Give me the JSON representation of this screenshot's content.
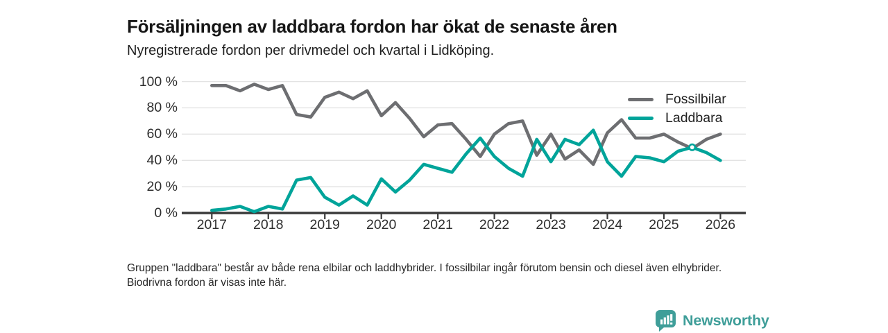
{
  "header": {
    "title": "Försäljningen av laddbara fordon har ökat de senaste åren",
    "subtitle": "Nyregistrerade fordon per drivmedel och kvartal i Lidköping."
  },
  "chart_data": {
    "type": "line",
    "x_unit": "quarter",
    "x_start": "2017 Q1",
    "x_end": "2026 Q1",
    "points_per_year": 4,
    "x_tick_labels": [
      "2017",
      "2018",
      "2019",
      "2020",
      "2021",
      "2022",
      "2023",
      "2024",
      "2025",
      "2026"
    ],
    "y_tick_labels": [
      "0 %",
      "20 %",
      "40 %",
      "60 %",
      "80 %",
      "100 %"
    ],
    "y_tick_values": [
      0,
      20,
      40,
      60,
      80,
      100
    ],
    "ylim": [
      0,
      100
    ],
    "grid": "horizontal",
    "legend_position": "top-right",
    "series": [
      {
        "name": "Fossilbilar",
        "color": "#6d6e71",
        "values": [
          97,
          97,
          93,
          98,
          94,
          97,
          75,
          73,
          88,
          92,
          87,
          93,
          74,
          84,
          72,
          58,
          67,
          68,
          56,
          43,
          60,
          68,
          70,
          44,
          60,
          41,
          48,
          37,
          61,
          71,
          57,
          57,
          60,
          54,
          49,
          56,
          60
        ]
      },
      {
        "name": "Laddbara",
        "color": "#00a49a",
        "values": [
          2,
          3,
          5,
          1,
          5,
          3,
          25,
          27,
          12,
          6,
          13,
          6,
          26,
          16,
          25,
          37,
          34,
          31,
          45,
          57,
          43,
          34,
          28,
          56,
          39,
          56,
          52,
          63,
          39,
          28,
          43,
          42,
          39,
          47,
          50,
          46,
          40
        ],
        "marker": {
          "index": 34,
          "quarter": "2025 Q3",
          "value": 50
        }
      }
    ]
  },
  "footnote": {
    "text": "Gruppen \"laddbara\" består av både rena elbilar och laddhybrider. I fossilbilar ingår förutom bensin och diesel även elhybrider. Biodrivna fordon är visas inte här."
  },
  "logo": {
    "text": "Newsworthy",
    "color": "#3f9e99",
    "icon": "bar-chart-speech-bubble-icon"
  },
  "style": {
    "gridline_color": "#e3e3e3",
    "axis_color": "#3a3a3a",
    "background": "#ffffff"
  }
}
